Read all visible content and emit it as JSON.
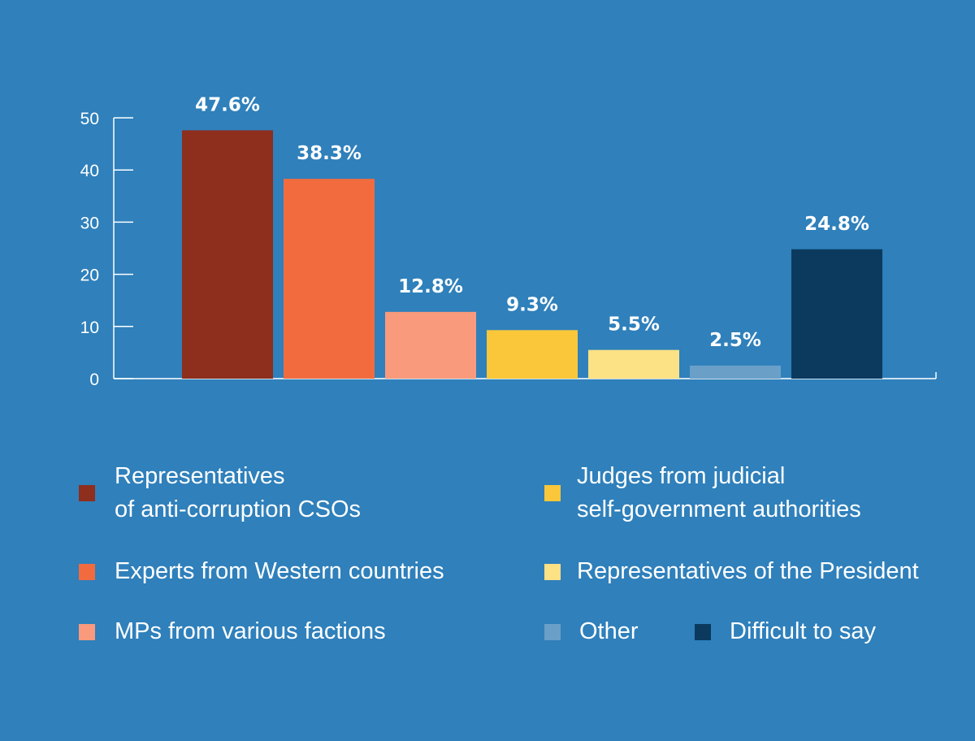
{
  "chart_data": {
    "type": "bar",
    "ylim": [
      0,
      50
    ],
    "yticks": [
      0,
      10,
      20,
      30,
      40,
      50
    ],
    "grid": false,
    "legend_placement": "bottom",
    "bars": [
      {
        "name": "Representatives of anti-corruption CSOs",
        "value": 47.6,
        "label": "47.6%",
        "color": "#8e2e1d"
      },
      {
        "name": "Experts from Western countries",
        "value": 38.3,
        "label": "38.3%",
        "color": "#f26b3f"
      },
      {
        "name": "MPs from various factions",
        "value": 12.8,
        "label": "12.8%",
        "color": "#f99a7c"
      },
      {
        "name": "Judges from judicial self-government authorities",
        "value": 9.3,
        "label": "9.3%",
        "color": "#fac73a"
      },
      {
        "name": "Representatives of the President",
        "value": 5.5,
        "label": "5.5%",
        "color": "#fde185"
      },
      {
        "name": "Other",
        "value": 2.5,
        "label": "2.5%",
        "color": "#6a9fc8"
      },
      {
        "name": "Difficult to say",
        "value": 24.8,
        "label": "24.8%",
        "color": "#0b3a5e"
      }
    ]
  },
  "legend": {
    "anti_corruption_line1": "Representatives",
    "anti_corruption_line2": "of anti-corruption CSOs",
    "western_experts": "Experts from Western countries",
    "mps": "MPs from various factions",
    "judges_line1": "Judges from judicial",
    "judges_line2": "self-government authorities",
    "president": "Representatives of the President",
    "other": "Other",
    "difficult": "Difficult to say"
  },
  "colors": {
    "background": "#2f80bb",
    "axis": "#ffffff"
  }
}
